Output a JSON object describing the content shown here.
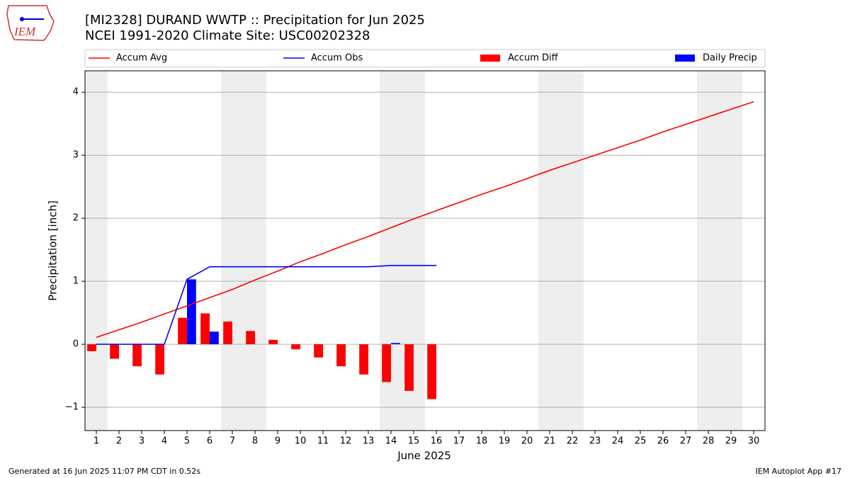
{
  "chart_data": {
    "type": "bar",
    "title": "[MI2328] DURAND WWTP :: Precipitation for Jun 2025",
    "subtitle": "NCEI 1991-2020 Climate Site: USC00202328",
    "x_label": "June 2025",
    "y_label": "Precipitation [inch]",
    "x": [
      1,
      2,
      3,
      4,
      5,
      6,
      7,
      8,
      9,
      10,
      11,
      12,
      13,
      14,
      15,
      16,
      17,
      18,
      19,
      20,
      21,
      22,
      23,
      24,
      25,
      26,
      27,
      28,
      29,
      30
    ],
    "xlim": [
      0.5,
      30.5
    ],
    "xticks": [
      1,
      2,
      3,
      4,
      5,
      6,
      7,
      8,
      9,
      10,
      11,
      12,
      13,
      14,
      15,
      16,
      17,
      18,
      19,
      20,
      21,
      22,
      23,
      24,
      25,
      26,
      27,
      28,
      29,
      30
    ],
    "ylim": [
      -1.37,
      4.34
    ],
    "yticks": [
      {
        "value": -1,
        "label": "−1"
      },
      0,
      1,
      2,
      3,
      4
    ],
    "grid": true,
    "weekend_days": [
      1,
      7,
      8,
      14,
      15,
      21,
      22,
      28,
      29
    ],
    "series": [
      {
        "name": "Accum Avg",
        "type": "line",
        "color": "#ff0000",
        "values": [
          0.11,
          0.23,
          0.35,
          0.48,
          0.61,
          0.74,
          0.87,
          1.02,
          1.16,
          1.31,
          1.44,
          1.58,
          1.71,
          1.85,
          1.99,
          2.12,
          2.25,
          2.38,
          2.5,
          2.63,
          2.76,
          2.88,
          3.0,
          3.12,
          3.24,
          3.37,
          3.49,
          3.61,
          3.73,
          3.85
        ]
      },
      {
        "name": "Accum Obs",
        "type": "line",
        "color": "#0000ff",
        "values": [
          0,
          0,
          0,
          0,
          1.03,
          1.23,
          1.23,
          1.23,
          1.23,
          1.23,
          1.23,
          1.23,
          1.23,
          1.25,
          1.25,
          1.25,
          null,
          null,
          null,
          null,
          null,
          null,
          null,
          null,
          null,
          null,
          null,
          null,
          null,
          null
        ]
      },
      {
        "name": "Accum Diff",
        "type": "bar",
        "color": "#ff0000",
        "values": [
          -0.11,
          -0.23,
          -0.35,
          -0.48,
          0.42,
          0.49,
          0.36,
          0.21,
          0.07,
          -0.08,
          -0.21,
          -0.35,
          -0.48,
          -0.6,
          -0.74,
          -0.87,
          null,
          null,
          null,
          null,
          null,
          null,
          null,
          null,
          null,
          null,
          null,
          null,
          null,
          null
        ]
      },
      {
        "name": "Daily Precip",
        "type": "bar",
        "color": "#0000ff",
        "values": [
          0,
          0,
          0,
          0,
          1.03,
          0.2,
          0,
          0,
          0,
          0,
          0,
          0,
          0,
          0.02,
          0,
          0,
          null,
          null,
          null,
          null,
          null,
          null,
          null,
          null,
          null,
          null,
          null,
          null,
          null,
          null
        ]
      }
    ]
  },
  "logo_text": "IEM",
  "footer_left": "Generated at 16 Jun 2025 11:07 PM CDT in 0.52s",
  "footer_right": "IEM Autoplot App #17"
}
